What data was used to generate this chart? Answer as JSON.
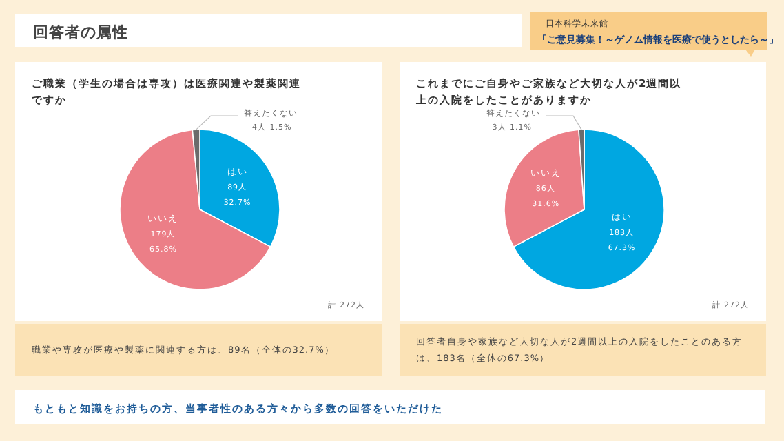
{
  "chart_data": [
    {
      "type": "other",
      "title": "回答者の属性",
      "annotations": [
        "日本科学未来館",
        "「ご意見募集！～ゲノム情報を医療で使うとしたら～」"
      ]
    },
    {
      "type": "pie",
      "title": "ご職業（学生の場合は専攻）は医療関連や製薬関連ですか",
      "categories": [
        "はい",
        "いいえ",
        "答えたくない"
      ],
      "values": [
        89,
        179,
        4
      ],
      "colors": [
        "#00a7e1",
        "#ec7e87",
        "#6b6b6b"
      ],
      "value_labels": [
        "89人 32.7%",
        "179人 65.8%",
        "4人 1.5%"
      ],
      "annotations": [
        "計 272人",
        "職業や専攻が医療や製薬に関連する方は、89名（全体の32.7%）"
      ]
    },
    {
      "type": "pie",
      "title": "これまでにご自身やご家族など大切な人が2週間以上の入院をしたことがありますか",
      "categories": [
        "はい",
        "いいえ",
        "答えたくない"
      ],
      "values": [
        183,
        86,
        3
      ],
      "colors": [
        "#00a7e1",
        "#ec7e87",
        "#6b6b6b"
      ],
      "value_labels": [
        "183人 67.3%",
        "86人 31.6%",
        "3人 1.1%"
      ],
      "annotations": [
        "計 272人",
        "回答者自身や家族など大切な人が2週間以上の入院をしたことのある方は、183名（全体の67.3%）"
      ]
    },
    {
      "type": "other",
      "annotations": [
        "もともと知識をお持ちの方、当事者性のある方々から多数の回答をいただけた"
      ]
    }
  ]
}
